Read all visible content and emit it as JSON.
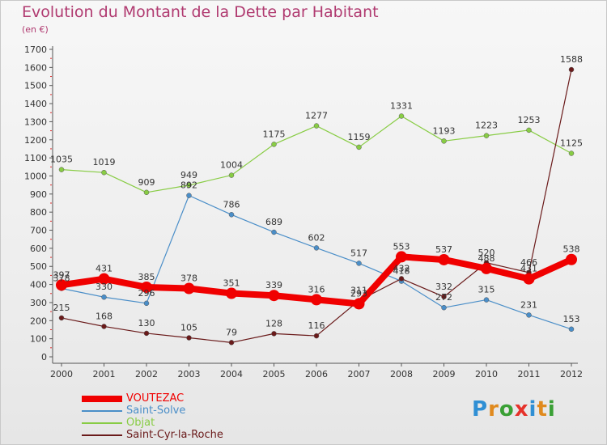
{
  "title": "Evolution du Montant de la Dette par Habitant",
  "subtitle": "(en €)",
  "logo": {
    "letters": [
      "P",
      "r",
      "o",
      "x",
      "i",
      "t",
      "i"
    ],
    "colors": [
      "#2f8fd4",
      "#e08a1e",
      "#3aa035",
      "#e6322b",
      "#2f8fd4",
      "#e08a1e",
      "#3aa035"
    ]
  },
  "chart_data": {
    "type": "line",
    "title": "Evolution du Montant de la Dette par Habitant",
    "subtitle": "(en €)",
    "xlabel": "",
    "ylabel": "",
    "ylim": [
      0,
      1700
    ],
    "yticks": [
      0,
      100,
      200,
      300,
      400,
      500,
      600,
      700,
      800,
      900,
      1000,
      1100,
      1200,
      1300,
      1400,
      1500,
      1600,
      1700
    ],
    "grid": false,
    "legend_position": "bottom-left",
    "x": [
      "2000",
      "2001",
      "2002",
      "2003",
      "2004",
      "2005",
      "2006",
      "2007",
      "2008",
      "2009",
      "2010",
      "2011",
      "2012"
    ],
    "series": [
      {
        "name": "VOUTEZAC",
        "color": "#f00000",
        "thick": true,
        "values": [
          397,
          431,
          385,
          378,
          351,
          339,
          316,
          293,
          553,
          537,
          488,
          431,
          538
        ],
        "labels": [
          "397",
          "431",
          "385",
          "378",
          "351",
          "339",
          "316",
          "293",
          "553",
          "537",
          "488",
          "431",
          "538"
        ]
      },
      {
        "name": "Saint-Solve",
        "color": "#4a8ec8",
        "thick": false,
        "values": [
          378,
          330,
          296,
          892,
          786,
          689,
          602,
          517,
          418,
          272,
          315,
          231,
          153
        ],
        "labels": [
          "378",
          "330",
          "296",
          "892",
          "786",
          "689",
          "602",
          "517",
          "418",
          "272",
          "315",
          "231",
          "153"
        ]
      },
      {
        "name": "Objat",
        "color": "#88cc44",
        "thick": false,
        "values": [
          1035,
          1019,
          909,
          949,
          1004,
          1175,
          1277,
          1159,
          1331,
          1193,
          1223,
          1253,
          1125
        ],
        "labels": [
          "1035",
          "1019",
          "909",
          "949",
          "1004",
          "1175",
          "1277",
          "1159",
          "1331",
          "1193",
          "1223",
          "1253",
          "1125"
        ]
      },
      {
        "name": "Saint-Cyr-la-Roche",
        "color": "#6a1a1a",
        "thick": false,
        "values": [
          215,
          168,
          130,
          105,
          79,
          128,
          116,
          311,
          432,
          332,
          520,
          466,
          1588
        ],
        "labels": [
          "215",
          "168",
          "130",
          "105",
          "79",
          "128",
          "116",
          "311",
          "432",
          "332",
          "520",
          "466",
          "1588"
        ]
      }
    ]
  }
}
